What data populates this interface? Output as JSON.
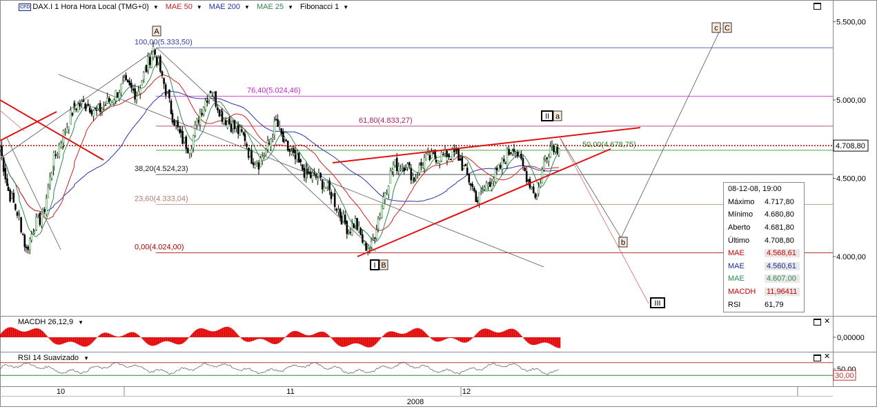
{
  "toolbar": {
    "cfd_badge": "CFD",
    "symbol": "DAX.I 1 Hora Hora Local (TMG+0)",
    "mae50": "MAE 50",
    "mae200": "MAE 200",
    "mae25": "MAE 25",
    "fib": "Fibonacci 1"
  },
  "colors": {
    "mae50": "#d02020",
    "mae200": "#2233aa",
    "mae25": "#2a8a4a",
    "up_candle": "#2a8a2a",
    "down_candle": "#000000",
    "macd": "#e00000",
    "rsi": "#666666",
    "trend": "#e01010"
  },
  "chart_data": {
    "type": "candlestick",
    "x_labels": [
      "10",
      "11",
      "12"
    ],
    "x_year": "2008",
    "y_ticks": [
      "5.500,00",
      "5.000,00",
      "4.500,00",
      "4.000,00"
    ],
    "ylim": [
      3620,
      5600
    ],
    "last_price": "4.708,80",
    "price_anchors": [
      [
        0,
        4700
      ],
      [
        12,
        4420
      ],
      [
        28,
        4250
      ],
      [
        38,
        4040
      ],
      [
        50,
        4200
      ],
      [
        62,
        4260
      ],
      [
        78,
        4620
      ],
      [
        92,
        4780
      ],
      [
        108,
        4960
      ],
      [
        125,
        4980
      ],
      [
        140,
        4920
      ],
      [
        160,
        5000
      ],
      [
        180,
        5100
      ],
      [
        198,
        5040
      ],
      [
        212,
        5200
      ],
      [
        222,
        5333
      ],
      [
        235,
        5150
      ],
      [
        250,
        4900
      ],
      [
        262,
        4760
      ],
      [
        275,
        4690
      ],
      [
        290,
        4920
      ],
      [
        305,
        5070
      ],
      [
        322,
        4900
      ],
      [
        340,
        4820
      ],
      [
        355,
        4760
      ],
      [
        362,
        4640
      ],
      [
        375,
        4600
      ],
      [
        390,
        4720
      ],
      [
        400,
        4860
      ],
      [
        412,
        4720
      ],
      [
        428,
        4620
      ],
      [
        445,
        4520
      ],
      [
        462,
        4500
      ],
      [
        480,
        4400
      ],
      [
        495,
        4250
      ],
      [
        505,
        4170
      ],
      [
        515,
        4220
      ],
      [
        528,
        4070
      ],
      [
        538,
        4060
      ],
      [
        548,
        4240
      ],
      [
        558,
        4420
      ],
      [
        570,
        4580
      ],
      [
        588,
        4590
      ],
      [
        600,
        4500
      ],
      [
        615,
        4620
      ],
      [
        632,
        4640
      ],
      [
        648,
        4650
      ],
      [
        662,
        4660
      ],
      [
        672,
        4560
      ],
      [
        682,
        4470
      ],
      [
        692,
        4360
      ],
      [
        705,
        4460
      ],
      [
        720,
        4530
      ],
      [
        735,
        4650
      ],
      [
        745,
        4710
      ],
      [
        758,
        4570
      ],
      [
        768,
        4470
      ],
      [
        778,
        4380
      ],
      [
        790,
        4640
      ],
      [
        800,
        4720
      ],
      [
        810,
        4690
      ]
    ],
    "fibonacci": [
      {
        "label": "100,00(5.333,50)",
        "value": 5333.5,
        "color": "#3344aa"
      },
      {
        "label": "76,40(5.024,46)",
        "value": 5024.46,
        "color": "#cc22cc"
      },
      {
        "label": "61,80(4.833,27)",
        "value": 4833.27,
        "color": "#aa2266"
      },
      {
        "label": "50,00(4.678,75)",
        "value": 4678.75,
        "color": "#228822"
      },
      {
        "label": "38,20(4.524,23)",
        "value": 4524.23,
        "color": "#222222"
      },
      {
        "label": "23,60(4.333,04)",
        "value": 4333.04,
        "color": "#b08070"
      },
      {
        "label": "0,00(4.024,00)",
        "value": 4024.0,
        "color": "#aa0000"
      }
    ],
    "wave_labels": [
      {
        "text": "A",
        "style": "plain"
      },
      {
        "text": "I",
        "style": "boxed"
      },
      {
        "text": "B",
        "style": "plain"
      },
      {
        "text": "II",
        "style": "boxed"
      },
      {
        "text": "a",
        "style": "plain"
      },
      {
        "text": "b",
        "style": "plain"
      },
      {
        "text": "c",
        "style": "plain"
      },
      {
        "text": "C",
        "style": "plain"
      },
      {
        "text": "III",
        "style": "boxed"
      }
    ],
    "projection": [
      [
        810,
        4770
      ],
      [
        900,
        4120
      ],
      [
        1045,
        5460
      ]
    ],
    "projection_III": [
      [
        810,
        4770
      ],
      [
        940,
        3700
      ]
    ],
    "macd_panel": {
      "title": "MACDH 26,12,9",
      "y_tick": "0,00000"
    },
    "rsi_panel": {
      "title": "RSI 14 Suavizado",
      "y_tick": "50,00",
      "level": "30,00",
      "upper_level": 70,
      "lower_level": 30
    }
  },
  "info_box": {
    "date": "08-12-08, 19:00",
    "rows": [
      {
        "k": "Máximo",
        "v": "4.717,80",
        "color": "#000000"
      },
      {
        "k": "Mínimo",
        "v": "4.680,80",
        "color": "#000000"
      },
      {
        "k": "Aberto",
        "v": "4.681,80",
        "color": "#000000"
      },
      {
        "k": "Último",
        "v": "4.708,80",
        "color": "#000000"
      },
      {
        "k": "MAE",
        "v": "4.568,61",
        "color": "#cc0000"
      },
      {
        "k": "MAE",
        "v": "4.560,61",
        "color": "#1a2a9a"
      },
      {
        "k": "MAE",
        "v": "4.607,00",
        "color": "#2a8a4a"
      },
      {
        "k": "MACDH",
        "v": "11,96411",
        "color": "#cc0000"
      },
      {
        "k": "RSI",
        "v": "61,79",
        "color": "#000000"
      }
    ]
  }
}
